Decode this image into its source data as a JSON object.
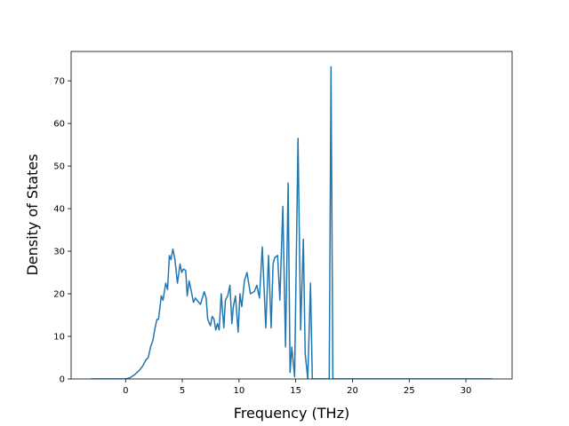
{
  "chart_data": {
    "type": "line",
    "xlabel": "Frequency (THz)",
    "ylabel": "Density of States",
    "x": [
      -3.05,
      0,
      0.4,
      0.8,
      1.2,
      1.5,
      1.8,
      2.0,
      2.2,
      2.4,
      2.6,
      2.76,
      2.9,
      3.15,
      3.3,
      3.54,
      3.7,
      3.86,
      4.0,
      4.17,
      4.35,
      4.57,
      4.8,
      4.95,
      5.1,
      5.3,
      5.43,
      5.6,
      5.8,
      5.98,
      6.15,
      6.3,
      6.45,
      6.6,
      6.93,
      7.1,
      7.24,
      7.48,
      7.64,
      7.8,
      7.95,
      8.1,
      8.25,
      8.43,
      8.66,
      8.8,
      9.0,
      9.2,
      9.37,
      9.5,
      9.69,
      9.92,
      10.08,
      10.24,
      10.47,
      10.7,
      11.0,
      11.34,
      11.57,
      11.8,
      12.05,
      12.36,
      12.6,
      12.83,
      13.0,
      13.15,
      13.4,
      13.6,
      13.86,
      14.1,
      14.33,
      14.5,
      14.65,
      14.9,
      15.2,
      15.43,
      15.67,
      15.83,
      16.06,
      16.3,
      16.46,
      17.95,
      18.11,
      18.27,
      32.3
    ],
    "series": [
      {
        "color": "#1f77b4",
        "values": [
          0,
          0,
          0.3,
          1,
          2,
          3,
          4.5,
          5,
          7.5,
          9,
          12,
          14,
          14,
          19.5,
          18.5,
          22.5,
          21,
          29,
          28,
          30.5,
          28,
          22.5,
          27,
          25,
          25.8,
          25.5,
          19.5,
          23,
          20.5,
          18,
          19,
          18.5,
          18,
          17.5,
          20.5,
          19,
          14,
          12.5,
          14.7,
          14,
          11.5,
          13,
          11.5,
          20,
          12,
          18.5,
          19.5,
          22,
          13,
          17,
          19.5,
          11,
          20,
          17,
          23,
          25,
          20,
          20.5,
          22,
          19,
          31,
          12,
          29,
          12,
          27,
          28.5,
          29,
          18.5,
          40.5,
          7.5,
          46,
          1.5,
          7.5,
          0.5,
          56.5,
          11.5,
          32.8,
          6,
          0,
          22.5,
          0,
          0,
          73.3,
          0,
          0
        ]
      }
    ],
    "xlim": [
      -4.8,
      34.07
    ],
    "ylim": [
      0,
      76.9
    ],
    "xticks": [
      0,
      5,
      10,
      15,
      20,
      25,
      30
    ],
    "yticks": [
      0,
      10,
      20,
      30,
      40,
      50,
      60,
      70
    ]
  }
}
